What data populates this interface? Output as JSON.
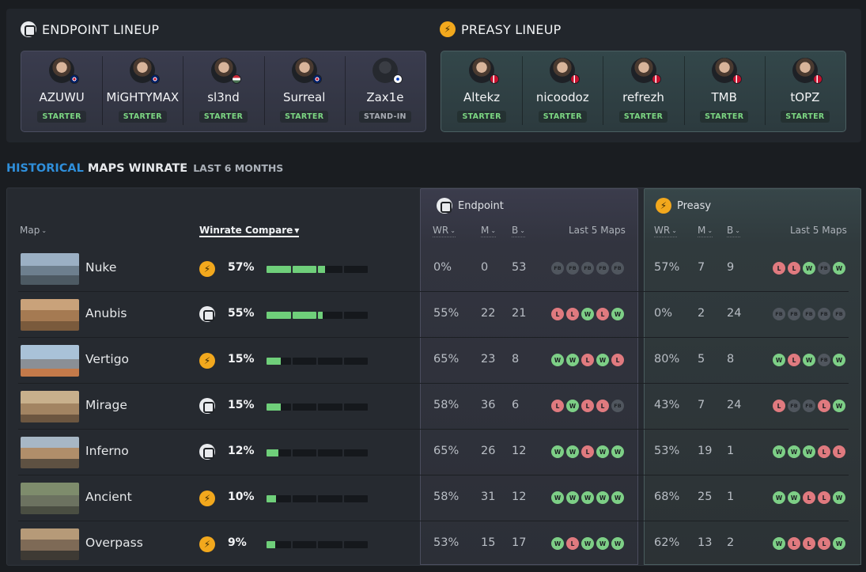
{
  "lineups": {
    "endpoint": {
      "title": "ENDPOINT LINEUP",
      "logo": "endpoint-logo",
      "players": [
        {
          "name": "AZUWU",
          "role": "STARTER",
          "flag": "gb"
        },
        {
          "name": "MiGHTYMAX",
          "role": "STARTER",
          "flag": "gb"
        },
        {
          "name": "sl3nd",
          "role": "STARTER",
          "flag": "hu"
        },
        {
          "name": "Surreal",
          "role": "STARTER",
          "flag": "gb"
        },
        {
          "name": "Zax1e",
          "role": "STAND-IN",
          "flag": "il"
        }
      ]
    },
    "preasy": {
      "title": "PREASY LINEUP",
      "logo": "preasy-logo",
      "players": [
        {
          "name": "Altekz",
          "role": "STARTER",
          "flag": "dk"
        },
        {
          "name": "nicoodoz",
          "role": "STARTER",
          "flag": "dk"
        },
        {
          "name": "refrezh",
          "role": "STARTER",
          "flag": "dk"
        },
        {
          "name": "TMB",
          "role": "STARTER",
          "flag": "dk"
        },
        {
          "name": "tOPZ",
          "role": "STARTER",
          "flag": "dk"
        }
      ]
    }
  },
  "section": {
    "highlight": "HISTORICAL",
    "title": "MAPS WINRATE",
    "subtitle": "LAST 6 MONTHS"
  },
  "table": {
    "headers": {
      "map": "Map",
      "winrate_compare": "Winrate Compare",
      "wr": "WR",
      "m": "M",
      "b": "B",
      "last5": "Last 5 Maps"
    },
    "teams": {
      "endpoint": "Endpoint",
      "preasy": "Preasy"
    },
    "rows": [
      {
        "map": "Nuke",
        "leader": "preasy",
        "compare": "57%",
        "compare_value": 57,
        "ep": {
          "wr": "0%",
          "m": "0",
          "b": "53",
          "last5": [
            "FB",
            "FB",
            "FB",
            "FB",
            "FB"
          ]
        },
        "pr": {
          "wr": "57%",
          "m": "7",
          "b": "9",
          "last5": [
            "L",
            "L",
            "W",
            "FB",
            "W"
          ]
        }
      },
      {
        "map": "Anubis",
        "leader": "endpoint",
        "compare": "55%",
        "compare_value": 55,
        "ep": {
          "wr": "55%",
          "m": "22",
          "b": "21",
          "last5": [
            "L",
            "L",
            "W",
            "L",
            "W"
          ]
        },
        "pr": {
          "wr": "0%",
          "m": "2",
          "b": "24",
          "last5": [
            "FB",
            "FB",
            "FB",
            "FB",
            "FB"
          ]
        }
      },
      {
        "map": "Vertigo",
        "leader": "preasy",
        "compare": "15%",
        "compare_value": 15,
        "ep": {
          "wr": "65%",
          "m": "23",
          "b": "8",
          "last5": [
            "W",
            "W",
            "L",
            "W",
            "L"
          ]
        },
        "pr": {
          "wr": "80%",
          "m": "5",
          "b": "8",
          "last5": [
            "W",
            "L",
            "W",
            "FB",
            "W"
          ]
        }
      },
      {
        "map": "Mirage",
        "leader": "endpoint",
        "compare": "15%",
        "compare_value": 15,
        "ep": {
          "wr": "58%",
          "m": "36",
          "b": "6",
          "last5": [
            "L",
            "W",
            "L",
            "L",
            "FB"
          ]
        },
        "pr": {
          "wr": "43%",
          "m": "7",
          "b": "24",
          "last5": [
            "L",
            "FB",
            "FB",
            "L",
            "W"
          ]
        }
      },
      {
        "map": "Inferno",
        "leader": "endpoint",
        "compare": "12%",
        "compare_value": 12,
        "ep": {
          "wr": "65%",
          "m": "26",
          "b": "12",
          "last5": [
            "W",
            "W",
            "L",
            "W",
            "W"
          ]
        },
        "pr": {
          "wr": "53%",
          "m": "19",
          "b": "1",
          "last5": [
            "W",
            "W",
            "W",
            "L",
            "L"
          ]
        }
      },
      {
        "map": "Ancient",
        "leader": "preasy",
        "compare": "10%",
        "compare_value": 10,
        "ep": {
          "wr": "58%",
          "m": "31",
          "b": "12",
          "last5": [
            "W",
            "W",
            "W",
            "W",
            "W"
          ]
        },
        "pr": {
          "wr": "68%",
          "m": "25",
          "b": "1",
          "last5": [
            "W",
            "W",
            "L",
            "L",
            "W"
          ]
        }
      },
      {
        "map": "Overpass",
        "leader": "preasy",
        "compare": "9%",
        "compare_value": 9,
        "ep": {
          "wr": "53%",
          "m": "15",
          "b": "17",
          "last5": [
            "W",
            "L",
            "W",
            "W",
            "W"
          ]
        },
        "pr": {
          "wr": "62%",
          "m": "13",
          "b": "2",
          "last5": [
            "W",
            "L",
            "L",
            "L",
            "W"
          ]
        }
      }
    ]
  },
  "colors": {
    "accent": "#2f8fdb",
    "win": "#7dcf86",
    "loss": "#e07a7f",
    "forfeit": "#50565e",
    "bar_fill": "#6fcf7a",
    "preasy_logo": "#f2a81d"
  }
}
